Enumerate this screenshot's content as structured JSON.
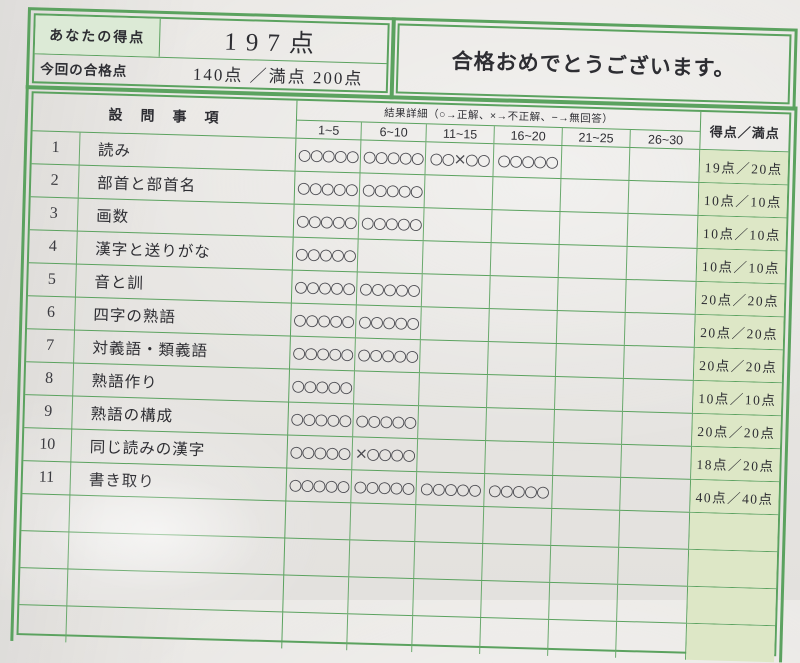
{
  "summary": {
    "your_score_label": "あなたの得点",
    "your_score_value": "197点",
    "passing_label": "今回の合格点",
    "passing_value": "140点 ／満点 200点",
    "message": "合格おめでとうございます。"
  },
  "table": {
    "header": {
      "items_label": "設　問　事　項",
      "detail_label": "結果詳細（○→正解、×→不正解、−→無回答）",
      "ranges": [
        "1~5",
        "6~10",
        "11~15",
        "16~20",
        "21~25",
        "26~30"
      ],
      "score_label": "得点／満点"
    },
    "rows": [
      {
        "no": "1",
        "item": "読み",
        "cells": [
          "○○○○○",
          "○○○○○",
          "○○×○○",
          "○○○○○",
          "",
          ""
        ],
        "score": "19点／20点"
      },
      {
        "no": "2",
        "item": "部首と部首名",
        "cells": [
          "○○○○○",
          "○○○○○",
          "",
          "",
          "",
          ""
        ],
        "score": "10点／10点"
      },
      {
        "no": "3",
        "item": "画数",
        "cells": [
          "○○○○○",
          "○○○○○",
          "",
          "",
          "",
          ""
        ],
        "score": "10点／10点"
      },
      {
        "no": "4",
        "item": "漢字と送りがな",
        "cells": [
          "○○○○○",
          "",
          "",
          "",
          "",
          ""
        ],
        "score": "10点／10点"
      },
      {
        "no": "5",
        "item": "音と訓",
        "cells": [
          "○○○○○",
          "○○○○○",
          "",
          "",
          "",
          ""
        ],
        "score": "20点／20点"
      },
      {
        "no": "6",
        "item": "四字の熟語",
        "cells": [
          "○○○○○",
          "○○○○○",
          "",
          "",
          "",
          ""
        ],
        "score": "20点／20点"
      },
      {
        "no": "7",
        "item": "対義語・類義語",
        "cells": [
          "○○○○○",
          "○○○○○",
          "",
          "",
          "",
          ""
        ],
        "score": "20点／20点"
      },
      {
        "no": "8",
        "item": "熟語作り",
        "cells": [
          "○○○○○",
          "",
          "",
          "",
          "",
          ""
        ],
        "score": "10点／10点"
      },
      {
        "no": "9",
        "item": "熟語の構成",
        "cells": [
          "○○○○○",
          "○○○○○",
          "",
          "",
          "",
          ""
        ],
        "score": "20点／20点"
      },
      {
        "no": "10",
        "item": "同じ読みの漢字",
        "cells": [
          "○○○○○",
          "×○○○○",
          "",
          "",
          "",
          ""
        ],
        "score": "18点／20点"
      },
      {
        "no": "11",
        "item": "書き取り",
        "cells": [
          "○○○○○",
          "○○○○○",
          "○○○○○",
          "○○○○○",
          "",
          ""
        ],
        "score": "40点／40点"
      }
    ]
  },
  "legend": {
    "correct_mark": "○",
    "incorrect_mark": "×",
    "no_answer_mark": "−"
  },
  "colors": {
    "line_green": "#5ba25f",
    "score_column_bg": "#dde7c6",
    "score_label_bg": "#dcead6",
    "paper": "#eceae7"
  }
}
